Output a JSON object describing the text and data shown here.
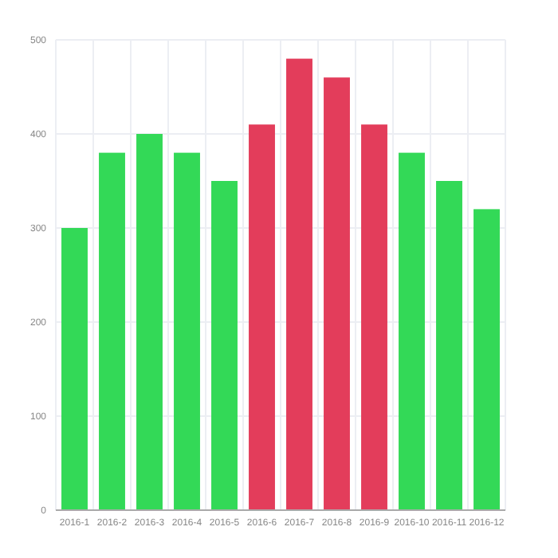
{
  "chart_data": {
    "type": "bar",
    "categories": [
      "2016-1",
      "2016-2",
      "2016-3",
      "2016-4",
      "2016-5",
      "2016-6",
      "2016-7",
      "2016-8",
      "2016-9",
      "2016-10",
      "2016-11",
      "2016-12"
    ],
    "values": [
      300,
      380,
      400,
      380,
      350,
      410,
      480,
      460,
      410,
      380,
      350,
      320
    ],
    "colors": [
      "#33d957",
      "#33d957",
      "#33d957",
      "#33d957",
      "#33d957",
      "#e33d5b",
      "#e33d5b",
      "#e33d5b",
      "#e33d5b",
      "#33d957",
      "#33d957",
      "#33d957"
    ],
    "ylim": [
      0,
      500
    ],
    "yticks": [
      0,
      100,
      200,
      300,
      400,
      500
    ],
    "grid": true
  }
}
